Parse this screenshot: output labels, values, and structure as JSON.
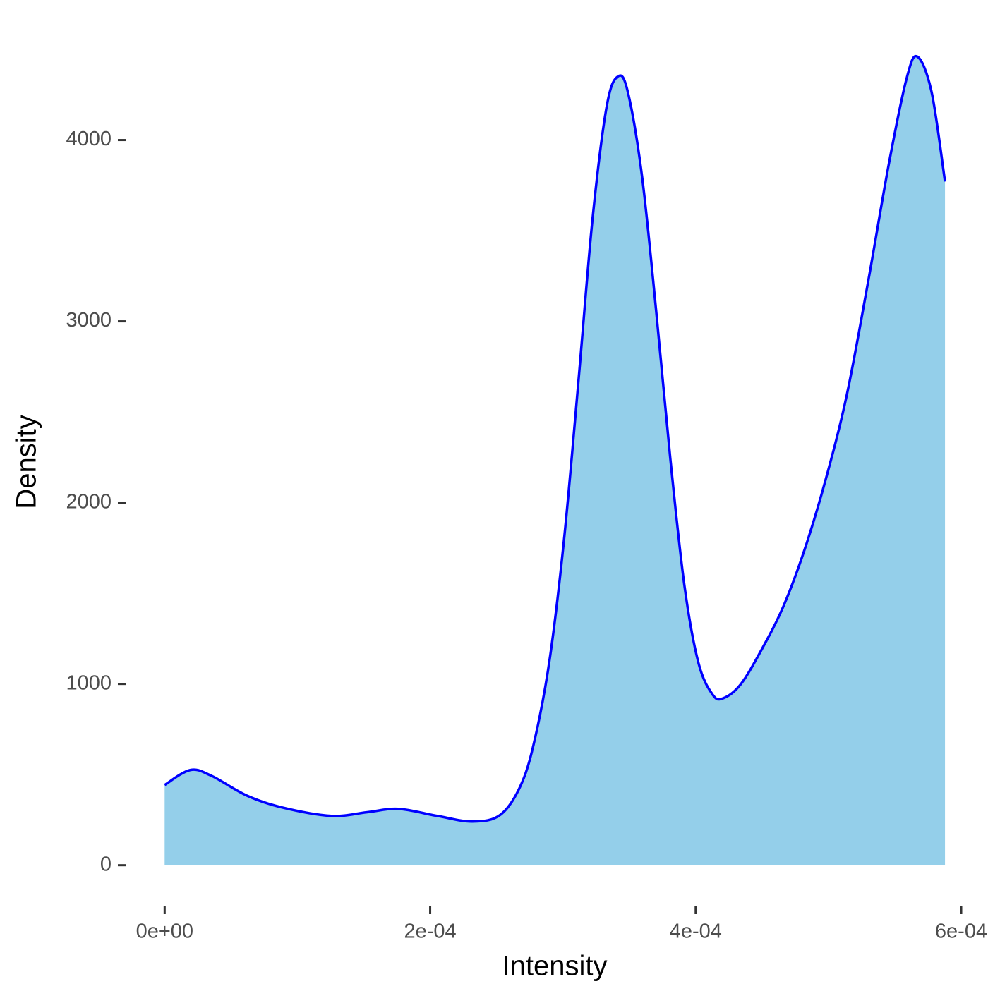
{
  "chart_data": {
    "type": "density",
    "x_label": "Intensity",
    "y_label": "Density",
    "x": [
      0,
      1.915e-05,
      3.51e-05,
      6.17e-05,
      8.83e-05,
      0.0001255,
      0.0001521,
      0.0001761,
      0.0002053,
      0.0002319,
      0.0002532,
      0.0002691,
      0.0002798,
      0.0002904,
      0.0003011,
      0.0003117,
      0.0003223,
      0.000333,
      0.0003415,
      0.0003489,
      0.0003596,
      0.0003702,
      0.0003809,
      0.0003915,
      0.0004021,
      0.0004128,
      0.0004207,
      0.000434,
      0.00045,
      0.000466,
      0.0004819,
      0.0004979,
      0.0005138,
      0.0005298,
      0.0005457,
      0.000559,
      0.000567,
      0.0005777,
      0.0005878
    ],
    "values": [
      443,
      525,
      494,
      385,
      319,
      272,
      292,
      311,
      272,
      241,
      280,
      455,
      727,
      1155,
      1816,
      2671,
      3565,
      4187,
      4351,
      4265,
      3799,
      3060,
      2243,
      1544,
      1116,
      941,
      921,
      999,
      1194,
      1427,
      1738,
      2127,
      2593,
      3215,
      3876,
      4343,
      4460,
      4265,
      3771
    ],
    "fill_color": "#94cfea",
    "line_color": "#0000ff",
    "xlim": [
      -2.94e-05,
      0.000617
    ],
    "ylim": [
      -223,
      4683
    ],
    "xticks": [
      {
        "value": 0,
        "label": "0e+00"
      },
      {
        "value": 0.0002,
        "label": "2e-04"
      },
      {
        "value": 0.0004,
        "label": "4e-04"
      },
      {
        "value": 0.0006,
        "label": "6e-04"
      }
    ],
    "yticks": [
      0,
      1000,
      2000,
      3000,
      4000
    ],
    "grid": false
  }
}
